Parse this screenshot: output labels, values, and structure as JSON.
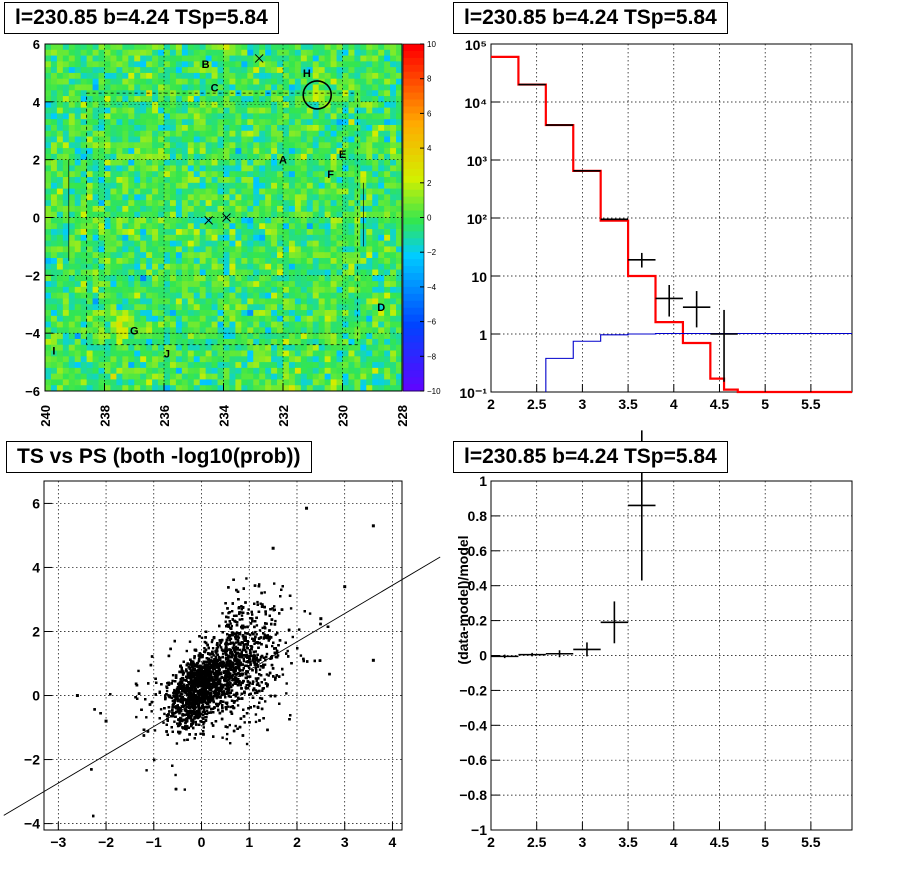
{
  "panels": {
    "map": {
      "title": "l=230.85 b=4.24 TSp=5.84"
    },
    "spectrum": {
      "title": "l=230.85 b=4.24 TSp=5.84"
    },
    "scatter": {
      "title": "TS vs PS (both -log10(prob))"
    },
    "residual": {
      "title": "l=230.85 b=4.24 TSp=5.84"
    }
  },
  "chart_data": [
    {
      "type": "heatmap",
      "x_ticks": [
        "240",
        "238",
        "236",
        "234",
        "232",
        "230",
        "228"
      ],
      "y_ticks": [
        "6",
        "4",
        "2",
        "0",
        "−2",
        "−4",
        "−6"
      ],
      "xlim": [
        240,
        228
      ],
      "ylim": [
        -6,
        6
      ],
      "colorbar_ticks": [
        "10",
        "8",
        "6",
        "4",
        "2",
        "0",
        "−2",
        "−4",
        "−6",
        "−8",
        "−10"
      ],
      "zlim": [
        -10,
        10
      ],
      "grid": true,
      "source_labels": [
        {
          "text": "B",
          "l": 234.6,
          "b": 5.3
        },
        {
          "text": "C",
          "l": 234.3,
          "b": 4.5
        },
        {
          "text": "H",
          "l": 231.2,
          "b": 5.0
        },
        {
          "text": "A",
          "l": 232.0,
          "b": 2.0
        },
        {
          "text": "E",
          "l": 230.0,
          "b": 2.2
        },
        {
          "text": "F",
          "l": 230.4,
          "b": 1.5
        },
        {
          "text": "D",
          "l": 228.7,
          "b": -3.1
        },
        {
          "text": "G",
          "l": 237.0,
          "b": -3.9
        },
        {
          "text": "J",
          "l": 235.9,
          "b": -4.7
        },
        {
          "text": "I",
          "l": 239.7,
          "b": -4.6
        }
      ],
      "markers": [
        {
          "l": 232.8,
          "b": 5.5
        },
        {
          "l": 234.5,
          "b": -0.1
        },
        {
          "l": 233.9,
          "b": 0.0
        }
      ],
      "circle": {
        "l": 230.85,
        "b": 4.24
      },
      "colors": {
        "background": "#33e650",
        "hot": "#ff0000",
        "cold": "#6600ff"
      }
    },
    {
      "type": "line",
      "log_y": true,
      "x_ticks": [
        "2",
        "2.5",
        "3",
        "3.5",
        "4",
        "4.5",
        "5",
        "5.5"
      ],
      "y_ticks": [
        "10⁵",
        "10⁴",
        "10³",
        "10²",
        "10",
        "1",
        "10⁻¹"
      ],
      "xlim": [
        2,
        5.95
      ],
      "ylim": [
        0.1,
        100000
      ],
      "grid": true,
      "series": [
        {
          "type": "step",
          "color": "#ff0000",
          "bin_edges": [
            2.0,
            2.3,
            2.6,
            2.9,
            3.2,
            3.5,
            3.8,
            4.1,
            4.4,
            4.55,
            4.7,
            5.95
          ],
          "values": [
            60000,
            20000,
            4000,
            650,
            90,
            10,
            1.6,
            0.7,
            0.17,
            0.11,
            0.1
          ]
        },
        {
          "type": "step",
          "color": "#0000cc",
          "bin_edges": [
            2.6,
            2.9,
            3.2,
            3.5,
            3.8,
            5.95
          ],
          "values": [
            0.38,
            0.75,
            0.97,
            1.0,
            1.02
          ]
        },
        {
          "type": "points",
          "color": "#000000",
          "points": [
            {
              "x": 2.45,
              "y": 20000
            },
            {
              "x": 2.75,
              "y": 4000
            },
            {
              "x": 3.05,
              "y": 650
            },
            {
              "x": 3.35,
              "y": 95
            },
            {
              "x": 3.65,
              "y": 19,
              "ylo": 14,
              "yhi": 25
            },
            {
              "x": 3.95,
              "y": 4.1,
              "ylo": 2.0,
              "yhi": 7.0
            },
            {
              "x": 4.25,
              "y": 2.9,
              "ylo": 1.3,
              "yhi": 5.5
            },
            {
              "x": 4.55,
              "y": 1.0,
              "ylo": 0.15,
              "yhi": 2.6
            }
          ]
        }
      ]
    },
    {
      "type": "scatter",
      "x_ticks": [
        "−3",
        "−2",
        "−1",
        "0",
        "1",
        "2",
        "3",
        "4"
      ],
      "y_ticks": [
        "6",
        "4",
        "2",
        "0",
        "−2",
        "−4"
      ],
      "xlim": [
        -3.3,
        4.2
      ],
      "ylim": [
        -4.2,
        6.7
      ],
      "grid": true,
      "outliers": [
        [
          2.2,
          5.85
        ],
        [
          3.6,
          5.3
        ],
        [
          2.5,
          2.4
        ],
        [
          3.6,
          1.1
        ],
        [
          -2.6,
          0.0
        ],
        [
          -2.0,
          -0.8
        ],
        [
          1.5,
          4.6
        ],
        [
          3.0,
          3.4
        ]
      ],
      "reference_line": {
        "slope": 0.95,
        "intercept": 0.2
      }
    },
    {
      "type": "line",
      "ylabel": "(data-model)/model",
      "x_ticks": [
        "2",
        "2.5",
        "3",
        "3.5",
        "4",
        "4.5",
        "5",
        "5.5"
      ],
      "y_ticks": [
        "1",
        "0.8",
        "0.6",
        "0.4",
        "0.2",
        "0",
        "−0.2",
        "−0.4",
        "−0.6",
        "−0.8",
        "−1"
      ],
      "xlim": [
        2,
        5.95
      ],
      "ylim": [
        -1,
        1
      ],
      "grid": true,
      "points": [
        {
          "x": 2.15,
          "y": -0.005,
          "xerr": 0.15,
          "yerr": 0.01
        },
        {
          "x": 2.45,
          "y": 0.005,
          "xerr": 0.15,
          "yerr": 0.01
        },
        {
          "x": 2.75,
          "y": 0.01,
          "xerr": 0.15,
          "yerr": 0.02
        },
        {
          "x": 3.05,
          "y": 0.035,
          "xerr": 0.15,
          "yerr": 0.04
        },
        {
          "x": 3.35,
          "y": 0.19,
          "xerr": 0.15,
          "yerr": 0.12
        },
        {
          "x": 3.65,
          "y": 0.86,
          "xerr": 0.15,
          "yerr": 0.43
        }
      ]
    }
  ]
}
